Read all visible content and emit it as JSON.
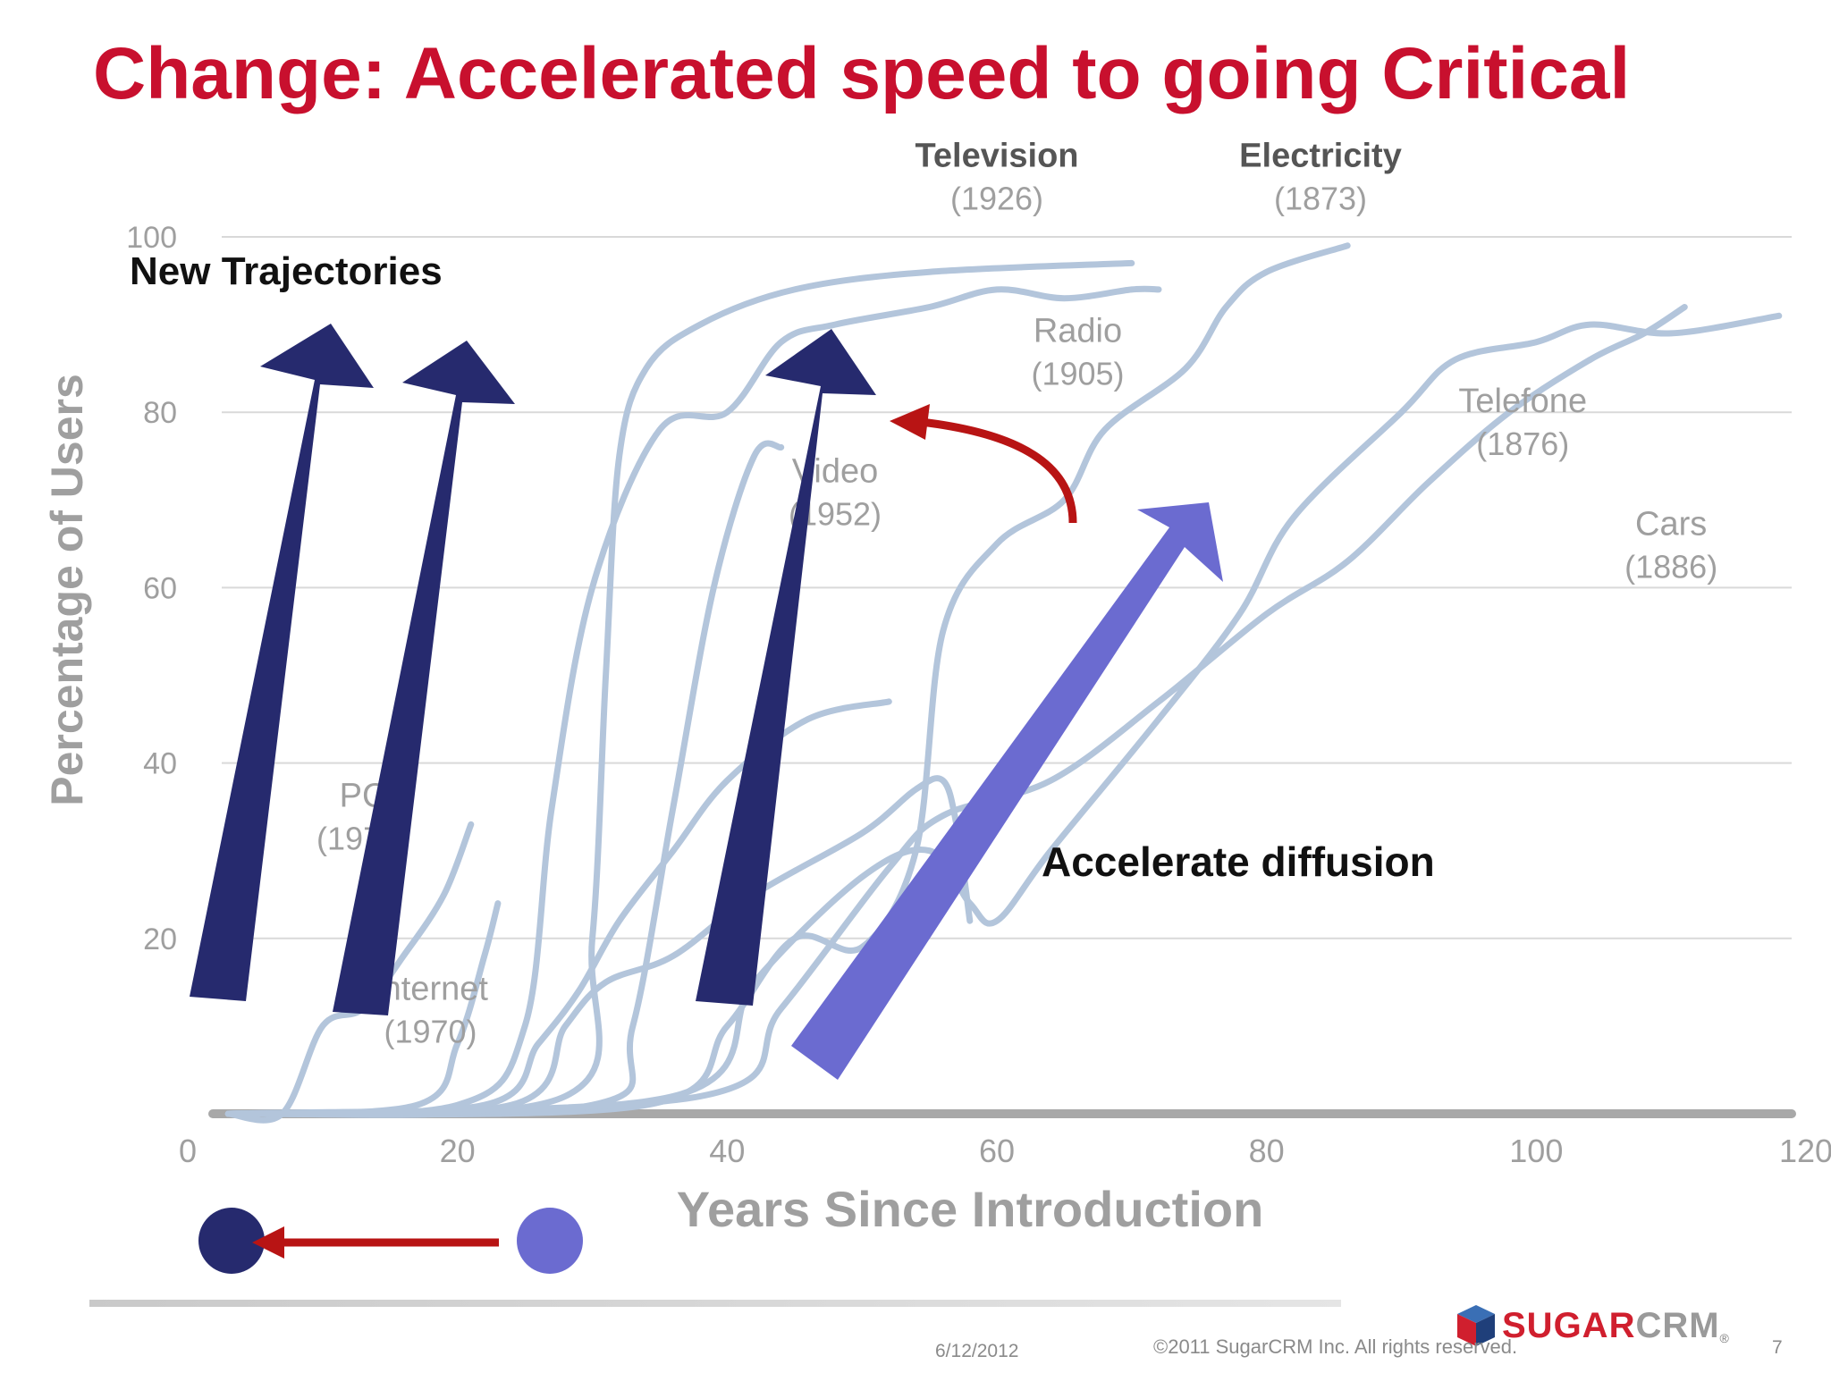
{
  "slide": {
    "title": "Change: Accelerated speed to going Critical",
    "footer": {
      "date": "6/12/2012",
      "copyright": "©2011 SugarCRM Inc. All rights reserved.",
      "page": "7"
    },
    "logo": {
      "part1": "SUGAR",
      "part2": "CRM",
      "mark": "®",
      "icon": "cube-logo-icon"
    }
  },
  "chart_data": {
    "type": "line",
    "title": "",
    "xlabel": "Years Since Introduction",
    "ylabel": "Percentage of Users",
    "xlim": [
      0,
      120
    ],
    "ylim": [
      0,
      100
    ],
    "xticks": [
      0,
      20,
      40,
      60,
      80,
      100,
      120
    ],
    "yticks": [
      20,
      40,
      60,
      80,
      100
    ],
    "grid": true,
    "series": [
      {
        "name": "Television",
        "year": "(1926)",
        "points": [
          [
            3,
            0
          ],
          [
            28,
            2
          ],
          [
            30,
            20
          ],
          [
            31,
            50
          ],
          [
            32,
            75
          ],
          [
            34,
            85
          ],
          [
            38,
            90
          ],
          [
            45,
            94
          ],
          [
            55,
            96
          ],
          [
            70,
            97
          ]
        ]
      },
      {
        "name": "Radio",
        "year": "(1905)",
        "points": [
          [
            3,
            0
          ],
          [
            20,
            1
          ],
          [
            25,
            10
          ],
          [
            27,
            35
          ],
          [
            30,
            60
          ],
          [
            35,
            78
          ],
          [
            40,
            80
          ],
          [
            44,
            88
          ],
          [
            48,
            90
          ],
          [
            55,
            92
          ],
          [
            60,
            94
          ],
          [
            65,
            93
          ],
          [
            70,
            94
          ],
          [
            72,
            94
          ]
        ]
      },
      {
        "name": "Video",
        "year": "(1952)",
        "points": [
          [
            3,
            0
          ],
          [
            30,
            1
          ],
          [
            33,
            10
          ],
          [
            36,
            35
          ],
          [
            39,
            60
          ],
          [
            42,
            75
          ],
          [
            44,
            76
          ]
        ]
      },
      {
        "name": "Electricity",
        "year": "(1873)",
        "points": [
          [
            3,
            0
          ],
          [
            34,
            1
          ],
          [
            40,
            10
          ],
          [
            45,
            20
          ],
          [
            50,
            19
          ],
          [
            54,
            30
          ],
          [
            56,
            55
          ],
          [
            60,
            65
          ],
          [
            65,
            70
          ],
          [
            68,
            78
          ],
          [
            74,
            85
          ],
          [
            77,
            92
          ],
          [
            80,
            96
          ],
          [
            86,
            99
          ]
        ]
      },
      {
        "name": "Telefone",
        "year": "(1876)",
        "points": [
          [
            3,
            0
          ],
          [
            36,
            2
          ],
          [
            42,
            15
          ],
          [
            50,
            27
          ],
          [
            55,
            30
          ],
          [
            58,
            24
          ],
          [
            60,
            22
          ],
          [
            64,
            30
          ],
          [
            72,
            45
          ],
          [
            78,
            57
          ],
          [
            82,
            68
          ],
          [
            90,
            80
          ],
          [
            94,
            86
          ],
          [
            100,
            88
          ],
          [
            104,
            90
          ],
          [
            110,
            89
          ],
          [
            118,
            91
          ]
        ]
      },
      {
        "name": "Cars",
        "year": "(1886)",
        "points": [
          [
            3,
            0
          ],
          [
            38,
            2
          ],
          [
            44,
            12
          ],
          [
            52,
            28
          ],
          [
            56,
            34
          ],
          [
            64,
            38
          ],
          [
            72,
            47
          ],
          [
            80,
            57
          ],
          [
            86,
            63
          ],
          [
            92,
            72
          ],
          [
            98,
            80
          ],
          [
            104,
            86
          ],
          [
            108,
            89
          ],
          [
            111,
            92
          ]
        ]
      },
      {
        "name": "PC",
        "year": "(1975)",
        "points": [
          [
            3,
            0
          ],
          [
            7,
            0
          ],
          [
            10,
            10
          ],
          [
            13,
            12
          ],
          [
            16,
            18
          ],
          [
            19,
            25
          ],
          [
            21,
            33
          ]
        ]
      },
      {
        "name": "Internet",
        "year": "(1970)",
        "points": [
          [
            3,
            0
          ],
          [
            17,
            1
          ],
          [
            20,
            8
          ],
          [
            22,
            18
          ],
          [
            23,
            24
          ]
        ]
      },
      {
        "name": "",
        "year": "",
        "points": [
          [
            3,
            0
          ],
          [
            24,
            1
          ],
          [
            28,
            10
          ],
          [
            31,
            15
          ],
          [
            36,
            18
          ],
          [
            42,
            25
          ],
          [
            50,
            32
          ],
          [
            54,
            37
          ],
          [
            56,
            38
          ],
          [
            57,
            33
          ],
          [
            58,
            22
          ]
        ]
      },
      {
        "name": "",
        "year": "",
        "points": [
          [
            3,
            0
          ],
          [
            22,
            1
          ],
          [
            26,
            8
          ],
          [
            29,
            14
          ],
          [
            32,
            22
          ],
          [
            36,
            30
          ],
          [
            40,
            38
          ],
          [
            46,
            45
          ],
          [
            52,
            47
          ]
        ]
      }
    ],
    "annotations": [
      "New Trajectories",
      "Accelerate diffusion"
    ],
    "style": {
      "line_color": "#b3c5db",
      "grid_color": "#d9d9d9",
      "axis_label_color": "#9f9f9f",
      "baseline_color": "#a8a8a8",
      "arrow_dark": "#262a6e",
      "arrow_light": "#6b6bd0",
      "arrow_red": "#b81414",
      "title_color": "#c8102e"
    }
  }
}
